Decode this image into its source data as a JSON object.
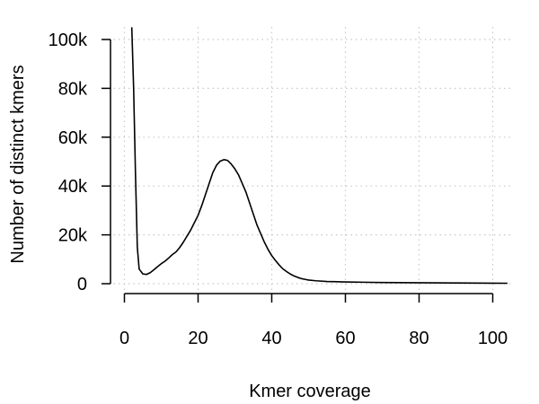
{
  "chart_data": {
    "type": "line",
    "title": "",
    "xlabel": "Kmer coverage",
    "ylabel": "Number of distinct kmers",
    "xlim": [
      0,
      104
    ],
    "ylim": [
      0,
      100000
    ],
    "grid": true,
    "legend": "none",
    "xticks": [
      0,
      20,
      40,
      60,
      80,
      100
    ],
    "yticks": [
      0,
      20000,
      40000,
      60000,
      80000,
      100000
    ],
    "xtick_labels": [
      "0",
      "20",
      "40",
      "60",
      "80",
      "100"
    ],
    "ytick_labels": [
      "0",
      "20k",
      "40k",
      "60k",
      "80k",
      "100k"
    ],
    "colors": {
      "line": "#000000",
      "grid": "#c8c8c8",
      "axis": "#000000"
    },
    "series": [
      {
        "x": [
          2,
          2.5,
          3,
          3.5,
          4,
          5,
          6,
          7,
          8,
          9,
          10,
          11,
          12,
          13,
          14,
          15,
          16,
          17,
          18,
          19,
          20,
          21,
          22,
          23,
          24,
          25,
          26,
          27,
          28,
          29,
          30,
          31,
          32,
          33,
          34,
          35,
          36,
          37,
          38,
          39,
          40,
          41,
          42,
          43,
          44,
          45,
          46,
          47,
          48,
          49,
          50,
          52,
          55,
          58,
          60,
          65,
          70,
          75,
          80,
          85,
          90,
          95,
          100,
          104
        ],
        "y": [
          105000,
          80000,
          45000,
          15000,
          6000,
          4000,
          3800,
          4500,
          5700,
          7000,
          8200,
          9200,
          10500,
          11900,
          13000,
          14800,
          17000,
          19500,
          22000,
          25000,
          28000,
          32000,
          36500,
          41000,
          45500,
          48500,
          50200,
          50800,
          50500,
          49000,
          47000,
          44500,
          41000,
          37500,
          33000,
          28500,
          24000,
          20500,
          17000,
          14000,
          11500,
          9500,
          7700,
          6100,
          5000,
          4000,
          3200,
          2600,
          2100,
          1800,
          1500,
          1200,
          900,
          800,
          700,
          600,
          500,
          450,
          400,
          350,
          300,
          250,
          200,
          180
        ]
      }
    ]
  }
}
